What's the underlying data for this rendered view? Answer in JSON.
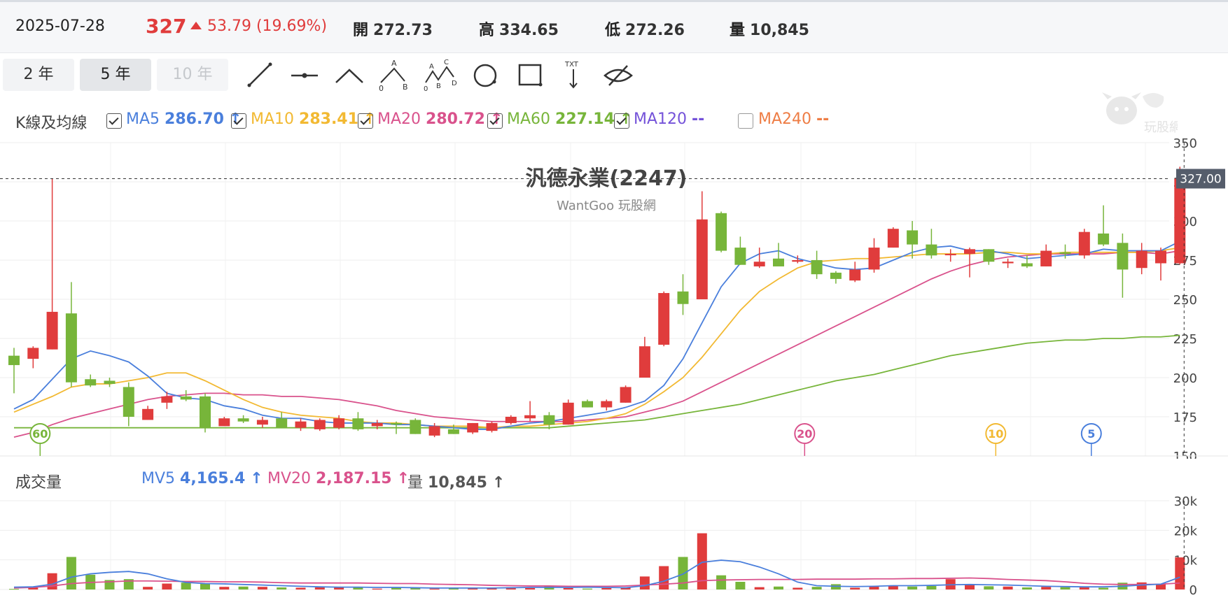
{
  "quote": {
    "date": "2025-07-28",
    "price": "327",
    "change": "53.79 (19.69%)",
    "open_label": "開",
    "open": "272.73",
    "high_label": "高",
    "high": "334.65",
    "low_label": "低",
    "low": "272.26",
    "vol_label": "量",
    "vol": "10,845"
  },
  "range_buttons": [
    "2 年",
    "5 年",
    "10 年"
  ],
  "tools": [
    "line-tool-icon",
    "horizontal-line-tool-icon",
    "angle-tool-icon",
    "abc-pattern-tool-icon",
    "abcd-pattern-tool-icon",
    "circle-tool-icon",
    "rectangle-tool-icon",
    "text-tool-icon",
    "hide-drawings-icon"
  ],
  "tool_text": {
    "a": "A",
    "b": "B",
    "c": "C",
    "d": "D",
    "zero": "0",
    "txt": "TXT"
  },
  "ma_section": {
    "title": "K線及均線",
    "items": [
      {
        "name": "MA5",
        "value": "286.70",
        "arrow": "↑",
        "color": "#4a7fdc",
        "checked": true
      },
      {
        "name": "MA10",
        "value": "283.41",
        "arrow": "↑",
        "color": "#f2b932",
        "checked": true
      },
      {
        "name": "MA20",
        "value": "280.72",
        "arrow": "↑",
        "color": "#d9528c",
        "checked": true
      },
      {
        "name": "MA60",
        "value": "227.14",
        "arrow": "↑",
        "color": "#77b53a",
        "checked": true
      },
      {
        "name": "MA120",
        "value": "--",
        "arrow": "",
        "color": "#7452d9",
        "checked": true
      },
      {
        "name": "MA240",
        "value": "--",
        "arrow": "",
        "color": "#ee7d45",
        "checked": false
      }
    ]
  },
  "logo_text": "玩股網",
  "volume_section": {
    "title": "成交量",
    "items": [
      {
        "name": "MV5",
        "value": "4,165.4",
        "arrow": "↑",
        "color": "#4a7fdc"
      },
      {
        "name": "MV20",
        "value": "2,187.15",
        "arrow": "↑",
        "color": "#d9528c"
      },
      {
        "name": "量",
        "value": "10,845",
        "arrow": "↑",
        "color": "#555555"
      }
    ]
  },
  "chart_data": {
    "type": "candlestick",
    "title": "汎德永業(2247)",
    "subtitle": "WantGoo 玩股網",
    "price_axis": {
      "ticks": [
        350,
        325,
        300,
        275,
        250,
        225,
        200,
        175,
        150
      ],
      "ylim": [
        150,
        350
      ]
    },
    "last_price_label": "327.00",
    "candles": [
      {
        "o": 214,
        "h": 219,
        "l": 190,
        "c": 208
      },
      {
        "o": 212,
        "h": 220,
        "l": 206,
        "c": 219
      },
      {
        "o": 218,
        "h": 327,
        "l": 218,
        "c": 242
      },
      {
        "o": 241,
        "h": 261,
        "l": 194,
        "c": 197
      },
      {
        "o": 199,
        "h": 202,
        "l": 194,
        "c": 195
      },
      {
        "o": 198,
        "h": 200,
        "l": 194,
        "c": 196
      },
      {
        "o": 194,
        "h": 197,
        "l": 169,
        "c": 175
      },
      {
        "o": 173,
        "h": 182,
        "l": 173,
        "c": 180
      },
      {
        "o": 184,
        "h": 191,
        "l": 180,
        "c": 188
      },
      {
        "o": 188,
        "h": 192,
        "l": 185,
        "c": 186
      },
      {
        "o": 188,
        "h": 190,
        "l": 165,
        "c": 168
      },
      {
        "o": 169,
        "h": 175,
        "l": 169,
        "c": 174
      },
      {
        "o": 174,
        "h": 176,
        "l": 171,
        "c": 172
      },
      {
        "o": 170,
        "h": 175,
        "l": 168,
        "c": 173
      },
      {
        "o": 174,
        "h": 178,
        "l": 168,
        "c": 168
      },
      {
        "o": 168,
        "h": 174,
        "l": 166,
        "c": 172
      },
      {
        "o": 167,
        "h": 174,
        "l": 166,
        "c": 173
      },
      {
        "o": 168,
        "h": 176,
        "l": 167,
        "c": 174
      },
      {
        "o": 174,
        "h": 178,
        "l": 166,
        "c": 167
      },
      {
        "o": 169,
        "h": 173,
        "l": 167,
        "c": 171
      },
      {
        "o": 171,
        "h": 172,
        "l": 164,
        "c": 170
      },
      {
        "o": 173,
        "h": 174,
        "l": 164,
        "c": 164
      },
      {
        "o": 163,
        "h": 171,
        "l": 162,
        "c": 169
      },
      {
        "o": 167,
        "h": 170,
        "l": 164,
        "c": 164
      },
      {
        "o": 165,
        "h": 171,
        "l": 164,
        "c": 171
      },
      {
        "o": 166,
        "h": 172,
        "l": 165,
        "c": 171
      },
      {
        "o": 171,
        "h": 176,
        "l": 170,
        "c": 175
      },
      {
        "o": 174,
        "h": 185,
        "l": 172,
        "c": 176
      },
      {
        "o": 176,
        "h": 178,
        "l": 167,
        "c": 170
      },
      {
        "o": 170,
        "h": 186,
        "l": 170,
        "c": 184
      },
      {
        "o": 185,
        "h": 186,
        "l": 181,
        "c": 181
      },
      {
        "o": 181,
        "h": 186,
        "l": 179,
        "c": 185
      },
      {
        "o": 184,
        "h": 195,
        "l": 184,
        "c": 194
      },
      {
        "o": 200,
        "h": 226,
        "l": 200,
        "c": 220
      },
      {
        "o": 221,
        "h": 255,
        "l": 220,
        "c": 254
      },
      {
        "o": 255,
        "h": 266,
        "l": 240,
        "c": 247
      },
      {
        "o": 250,
        "h": 319,
        "l": 250,
        "c": 301
      },
      {
        "o": 305,
        "h": 306,
        "l": 280,
        "c": 281
      },
      {
        "o": 283,
        "h": 290,
        "l": 272,
        "c": 272
      },
      {
        "o": 271,
        "h": 283,
        "l": 270,
        "c": 274
      },
      {
        "o": 276,
        "h": 286,
        "l": 272,
        "c": 271
      },
      {
        "o": 274,
        "h": 278,
        "l": 273,
        "c": 275
      },
      {
        "o": 275,
        "h": 281,
        "l": 263,
        "c": 266
      },
      {
        "o": 267,
        "h": 268,
        "l": 260,
        "c": 263
      },
      {
        "o": 262,
        "h": 274,
        "l": 261,
        "c": 269
      },
      {
        "o": 269,
        "h": 289,
        "l": 267,
        "c": 283
      },
      {
        "o": 283,
        "h": 296,
        "l": 283,
        "c": 295
      },
      {
        "o": 294,
        "h": 300,
        "l": 276,
        "c": 285
      },
      {
        "o": 285,
        "h": 295,
        "l": 276,
        "c": 278
      },
      {
        "o": 279,
        "h": 282,
        "l": 274,
        "c": 279
      },
      {
        "o": 279,
        "h": 283,
        "l": 264,
        "c": 282
      },
      {
        "o": 282,
        "h": 282,
        "l": 272,
        "c": 274
      },
      {
        "o": 273,
        "h": 276,
        "l": 270,
        "c": 274
      },
      {
        "o": 273,
        "h": 278,
        "l": 270,
        "c": 271
      },
      {
        "o": 271,
        "h": 285,
        "l": 271,
        "c": 281
      },
      {
        "o": 280,
        "h": 285,
        "l": 276,
        "c": 279
      },
      {
        "o": 278,
        "h": 295,
        "l": 276,
        "c": 293
      },
      {
        "o": 292,
        "h": 310,
        "l": 284,
        "c": 285
      },
      {
        "o": 286,
        "h": 292,
        "l": 251,
        "c": 269
      },
      {
        "o": 270,
        "h": 286,
        "l": 266,
        "c": 281
      },
      {
        "o": 273,
        "h": 283,
        "l": 262,
        "c": 281
      },
      {
        "o": 273,
        "h": 334.65,
        "l": 272.26,
        "c": 327
      }
    ],
    "ma5": [
      180,
      186,
      199,
      212,
      217,
      214,
      210,
      201,
      190,
      187,
      186,
      182,
      180,
      176,
      174,
      174,
      172,
      171,
      171,
      171,
      170,
      170,
      169,
      168,
      167,
      167,
      169,
      171,
      172,
      174,
      176,
      178,
      181,
      185,
      195,
      212,
      235,
      258,
      273,
      279,
      281,
      276,
      273,
      270,
      269,
      270,
      275,
      280,
      283,
      284,
      281,
      281,
      279,
      276,
      277,
      278,
      279,
      282,
      281,
      281,
      281,
      287
    ],
    "ma10": [
      178,
      183,
      188,
      194,
      196,
      196,
      198,
      200,
      203,
      203,
      198,
      192,
      186,
      181,
      178,
      176,
      175,
      174,
      172,
      171,
      171,
      170,
      169,
      169,
      169,
      168,
      169,
      169,
      170,
      171,
      172,
      174,
      177,
      183,
      191,
      200,
      213,
      228,
      243,
      255,
      263,
      270,
      274,
      275,
      276,
      276,
      277,
      278,
      279,
      279,
      279,
      280,
      280,
      279,
      279,
      280,
      280,
      280,
      280,
      280,
      281,
      283
    ],
    "ma20": [
      162,
      165,
      170,
      174,
      177,
      180,
      183,
      186,
      188,
      189,
      190,
      190,
      189,
      189,
      188,
      188,
      187,
      186,
      184,
      182,
      179,
      177,
      175,
      174,
      173,
      172,
      172,
      172,
      172,
      172,
      173,
      174,
      175,
      178,
      181,
      185,
      191,
      197,
      203,
      209,
      215,
      221,
      227,
      233,
      239,
      245,
      251,
      257,
      263,
      268,
      272,
      275,
      277,
      278,
      279,
      279,
      279,
      279,
      280,
      280,
      279,
      281
    ],
    "ma60": [
      168,
      168,
      168,
      168,
      168,
      168,
      168,
      168,
      168,
      168,
      168,
      168,
      168,
      168,
      168,
      168,
      168,
      168,
      168,
      168,
      168,
      168,
      168,
      168,
      168,
      168,
      168,
      168,
      168,
      169,
      170,
      171,
      172,
      173,
      175,
      177,
      179,
      181,
      183,
      186,
      189,
      192,
      195,
      198,
      200,
      202,
      205,
      208,
      211,
      214,
      216,
      218,
      220,
      222,
      223,
      224,
      224,
      225,
      225,
      226,
      226,
      227
    ],
    "ma_badges": [
      {
        "label": "60",
        "color": "#77b53a",
        "index": 1
      },
      {
        "label": "20",
        "color": "#d9528c",
        "index": 41
      },
      {
        "label": "10",
        "color": "#f2b932",
        "index": 51
      },
      {
        "label": "5",
        "color": "#4a7fdc",
        "index": 56
      }
    ],
    "volume": {
      "ticks": [
        "30k",
        "20k",
        "10k",
        "0"
      ],
      "ylim": [
        0,
        30000
      ],
      "bars": [
        200,
        600,
        5500,
        11000,
        5000,
        3200,
        3500,
        900,
        2000,
        2300,
        2100,
        900,
        1000,
        900,
        700,
        600,
        700,
        700,
        600,
        300,
        600,
        500,
        300,
        500,
        400,
        700,
        800,
        500,
        1100,
        500,
        300,
        500,
        600,
        4400,
        7900,
        11000,
        19000,
        4800,
        2600,
        800,
        1000,
        600,
        900,
        1800,
        600,
        1100,
        1300,
        1000,
        1200,
        3500,
        1600,
        1100,
        1000,
        700,
        900,
        800,
        700,
        600,
        2300,
        2400,
        1900,
        10845
      ],
      "mv5": [
        800,
        900,
        1800,
        4200,
        5300,
        5800,
        6100,
        5300,
        3600,
        2400,
        2000,
        1900,
        1700,
        1500,
        1300,
        1100,
        900,
        800,
        800,
        700,
        700,
        600,
        500,
        500,
        500,
        500,
        600,
        700,
        700,
        700,
        800,
        700,
        600,
        1300,
        2800,
        5200,
        9200,
        9900,
        9400,
        7600,
        5300,
        2500,
        1300,
        1100,
        1000,
        1100,
        1300,
        1300,
        1400,
        1600,
        1700,
        1600,
        1500,
        1300,
        1100,
        1000,
        900,
        900,
        1100,
        1500,
        1800,
        4165.4
      ],
      "mv20": [
        500,
        700,
        1200,
        2000,
        2400,
        2600,
        2900,
        2900,
        2800,
        2700,
        2700,
        2600,
        2600,
        2500,
        2300,
        2200,
        2200,
        2200,
        2200,
        2100,
        2000,
        2000,
        1800,
        1700,
        1600,
        1400,
        1300,
        1200,
        1200,
        1100,
        1100,
        1100,
        1200,
        1500,
        1800,
        2200,
        3000,
        3200,
        3300,
        3400,
        3400,
        3400,
        3500,
        3500,
        3500,
        3600,
        3600,
        3700,
        3700,
        3800,
        3900,
        3700,
        3400,
        3200,
        3000,
        2600,
        2100,
        1800,
        1700,
        1700,
        1800,
        2187.15
      ]
    },
    "bull_color": "#e03c3c",
    "bear_color": "#77b53a"
  }
}
